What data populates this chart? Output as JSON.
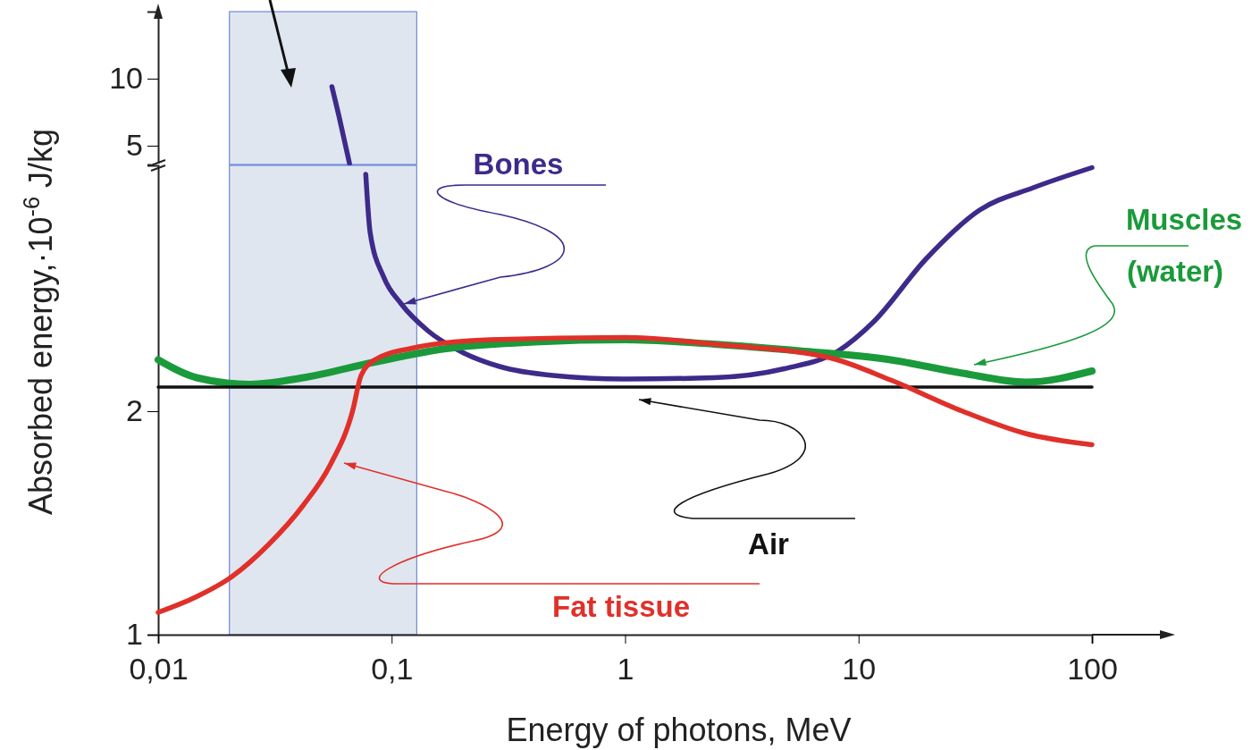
{
  "chart_data": [
    {
      "type": "line",
      "xlim": [
        0.01,
        100
      ],
      "log": "x",
      "ylim": [
        3.6,
        15
      ],
      "yticks": [
        5,
        10
      ],
      "tick_labels": "y",
      "bands": [
        {
          "axis": "x",
          "from": 0.0202,
          "to": 0.128,
          "color": "#dfe6f0"
        }
      ],
      "series": [
        {
          "color": "#3d2a8a",
          "x": [
            0.0555,
            0.0595,
            0.066
          ],
          "values": [
            9.4,
            7.2,
            3.67
          ]
        }
      ]
    },
    {
      "type": "line",
      "xlim": [
        0.01,
        100
      ],
      "log": "x",
      "ylim": [
        1,
        3.1
      ],
      "yticks": [
        1,
        2
      ],
      "xticks": [
        {
          "value": 0.01,
          "label": "0,01"
        },
        {
          "value": 0.1,
          "label": "0,1"
        },
        1,
        10,
        100
      ],
      "xlabel": "Energy of photons, MeV",
      "ylabel": "Absorbed energy,·10$^{-6}$ J/kg",
      "bands": [
        {
          "axis": "x",
          "from": 0.0202,
          "to": 0.128,
          "color": "#dfe6f0"
        }
      ],
      "series": [
        {
          "name": "Bones",
          "color": "#3d2a8a",
          "x": [
            0.0775,
            0.0809,
            0.0925,
            0.11,
            0.143,
            0.204,
            0.29,
            0.49,
            0.99,
            2.4,
            4.8,
            8.2,
            11.6,
            19.4,
            33,
            56,
            100
          ],
          "values": [
            3.06,
            2.8,
            2.6,
            2.48,
            2.36,
            2.26,
            2.2,
            2.16,
            2.144,
            2.15,
            2.19,
            2.27,
            2.4,
            2.68,
            2.9,
            3.0,
            3.09
          ]
        },
        {
          "name": "Muscles (water)",
          "color": "#1a9a3a",
          "x": [
            0.01,
            0.0146,
            0.0247,
            0.0419,
            0.0847,
            0.171,
            0.41,
            1,
            2.4,
            5.6,
            13.7,
            27.9,
            52,
            100
          ],
          "values": [
            2.23,
            2.15,
            2.12,
            2.15,
            2.22,
            2.28,
            2.31,
            2.32,
            2.3,
            2.27,
            2.23,
            2.17,
            2.13,
            2.18
          ]
        },
        {
          "name": "Air",
          "color": "#111111",
          "x": [
            0.01,
            100
          ],
          "values": [
            2.108,
            2.108
          ]
        },
        {
          "name": "Fat tissue",
          "color": "#e0302a",
          "x": [
            0.01,
            0.0146,
            0.0207,
            0.0295,
            0.0419,
            0.0546,
            0.068,
            0.074,
            0.0847,
            0.12,
            0.265,
            1,
            2.4,
            7.48,
            13.7,
            27.9,
            52,
            100
          ],
          "values": [
            1.1,
            1.17,
            1.26,
            1.4,
            1.58,
            1.76,
            2.0,
            2.16,
            2.23,
            2.28,
            2.32,
            2.33,
            2.3,
            2.24,
            2.14,
            2.0,
            1.9,
            1.85
          ]
        }
      ]
    }
  ]
}
